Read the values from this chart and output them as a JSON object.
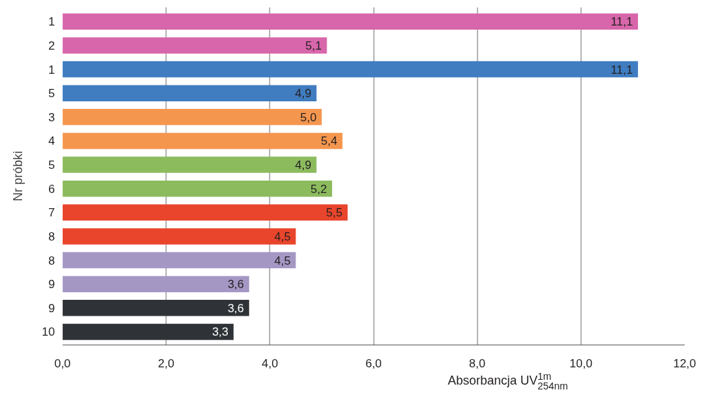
{
  "chart_data": {
    "type": "bar",
    "orientation": "horizontal",
    "xlabel": "Absorbancja UV$^{1m}$$_{254nm}$",
    "ylabel": "Nr próbki",
    "categories": [
      "1",
      "2",
      "1",
      "5",
      "3",
      "4",
      "5",
      "6",
      "7",
      "8",
      "8",
      "9",
      "9",
      "10"
    ],
    "values": [
      11.1,
      5.1,
      11.1,
      4.9,
      5.0,
      5.4,
      4.9,
      5.2,
      5.5,
      4.5,
      4.5,
      3.6,
      3.6,
      3.3
    ],
    "colors": [
      "#d766aa",
      "#d766aa",
      "#407cc0",
      "#407cc0",
      "#f5964f",
      "#f5964f",
      "#8cbb5e",
      "#8cbb5e",
      "#e8452c",
      "#e8452c",
      "#a597c4",
      "#a597c4",
      "#2f3337",
      "#2f3337"
    ],
    "value_labels": [
      "11,1",
      "5,1",
      "11,1",
      "4,9",
      "5,0",
      "5,4",
      "4,9",
      "5,2",
      "5,5",
      "4,5",
      "4,5",
      "3,6",
      "3,6",
      "3,3"
    ],
    "xlim": [
      0,
      12
    ],
    "xticks": [
      {
        "value": 0,
        "label": "0,0"
      },
      {
        "value": 2,
        "label": "2,0"
      },
      {
        "value": 4,
        "label": "4,0"
      },
      {
        "value": 6,
        "label": "6,0"
      },
      {
        "value": 8,
        "label": "8,0"
      },
      {
        "value": 10,
        "label": "10,0"
      },
      {
        "value": 12,
        "label": "12,0"
      }
    ],
    "grid": "x"
  }
}
